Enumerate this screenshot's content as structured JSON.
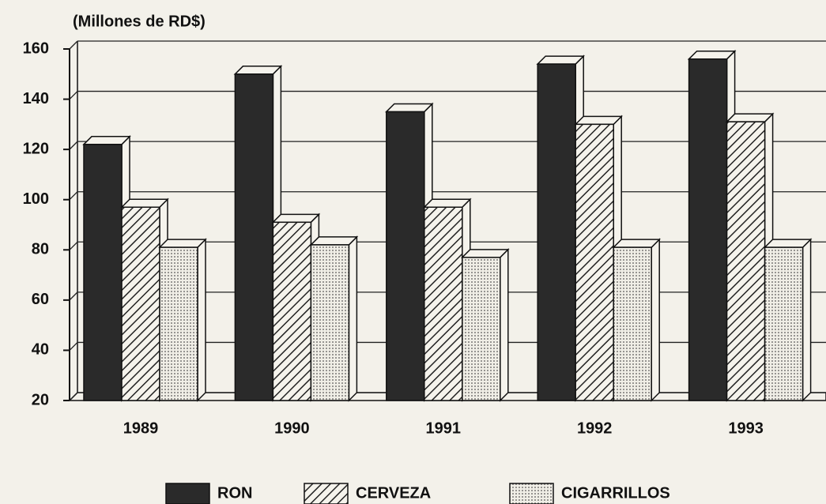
{
  "chart_data": {
    "type": "bar3d",
    "y_label": "(Millones de RD$)",
    "categories": [
      "1989",
      "1990",
      "1991",
      "1992",
      "1993"
    ],
    "series": [
      {
        "name": "RON",
        "color": "#2a2a2a",
        "fill": "solid",
        "values": [
          122,
          150,
          135,
          154,
          156
        ]
      },
      {
        "name": "CERVEZA",
        "color": "#222222",
        "fill": "hatch",
        "values": [
          97,
          91,
          97,
          130,
          131
        ]
      },
      {
        "name": "CIGARRILLOS",
        "color": "#555555",
        "fill": "dots",
        "values": [
          81,
          82,
          77,
          81,
          81
        ]
      }
    ],
    "ylim": [
      20,
      160
    ],
    "yticks": [
      20,
      40,
      60,
      80,
      100,
      120,
      140,
      160
    ],
    "grid": true
  }
}
